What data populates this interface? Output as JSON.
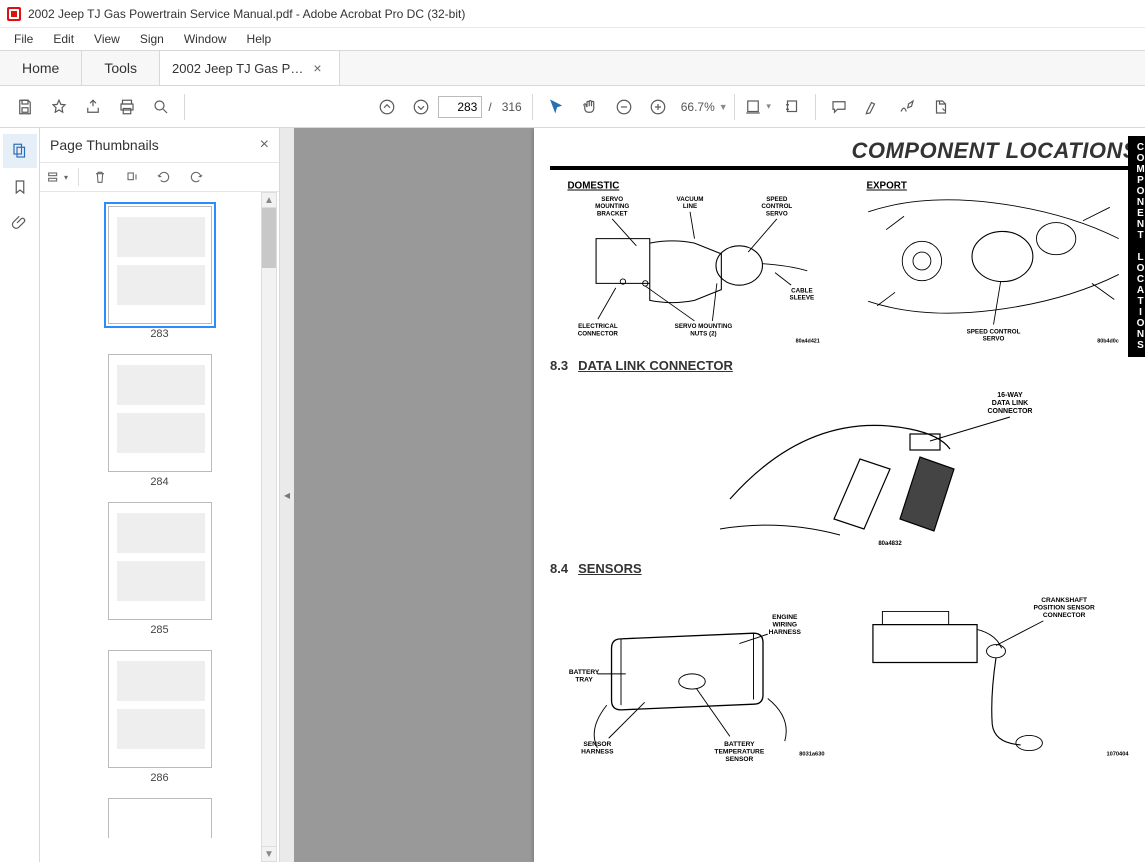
{
  "window": {
    "title": "2002 Jeep TJ Gas Powertrain Service Manual.pdf - Adobe Acrobat Pro DC (32-bit)"
  },
  "menus": [
    "File",
    "Edit",
    "View",
    "Sign",
    "Window",
    "Help"
  ],
  "tabs": {
    "home": "Home",
    "tools": "Tools",
    "doc": "2002 Jeep TJ Gas P…"
  },
  "toolbar": {
    "current_page": "283",
    "total_pages": "316",
    "page_sep": "/",
    "zoom": "66.7%"
  },
  "thumbnails": {
    "title": "Page Thumbnails",
    "pages": [
      "283",
      "284",
      "285",
      "286"
    ],
    "selected": "283"
  },
  "document": {
    "heading": "COMPONENT LOCATIONS",
    "side_tab_chars": [
      "C",
      "O",
      "M",
      "P",
      "O",
      "N",
      "E",
      "N",
      "T",
      "",
      "L",
      "O",
      "C",
      "A",
      "T",
      "I",
      "O",
      "N",
      "S"
    ],
    "fig1": {
      "domestic_label": "DOMESTIC",
      "export_label": "EXPORT",
      "labels": {
        "servo_bracket": "SERVO MOUNTING BRACKET",
        "vacuum_line": "VACUUM LINE",
        "speed_servo": "SPEED CONTROL SERVO",
        "cable_sleeve": "CABLE SLEEVE",
        "elec_conn": "ELECTRICAL CONNECTOR",
        "servo_nuts": "SERVO MOUNTING NUTS (2)",
        "export_servo": "SPEED CONTROL SERVO"
      },
      "code_left": "80a4d421",
      "code_right": "80b4d0c"
    },
    "sec83": {
      "num": "8.3",
      "title": "DATA LINK CONNECTOR"
    },
    "fig2": {
      "label": "16-WAY DATA LINK CONNECTOR",
      "code": "80a4832"
    },
    "sec84": {
      "num": "8.4",
      "title": "SENSORS"
    },
    "fig3": {
      "labels": {
        "eng_harness": "ENGINE WIRING HARNESS",
        "battery_tray": "BATTERY TRAY",
        "sensor_harness": "SENSOR HARNESS",
        "batt_temp": "BATTERY TEMPERATURE SENSOR",
        "crank": "CRANKSHAFT POSITION SENSOR CONNECTOR"
      },
      "code_left": "8031a630",
      "code_right": "1070404"
    }
  },
  "colors": {
    "accent": "#2a8cff",
    "toolbar_icon": "#5a5a5a",
    "canvas_bg": "#999999",
    "border": "#d8d8d8"
  }
}
